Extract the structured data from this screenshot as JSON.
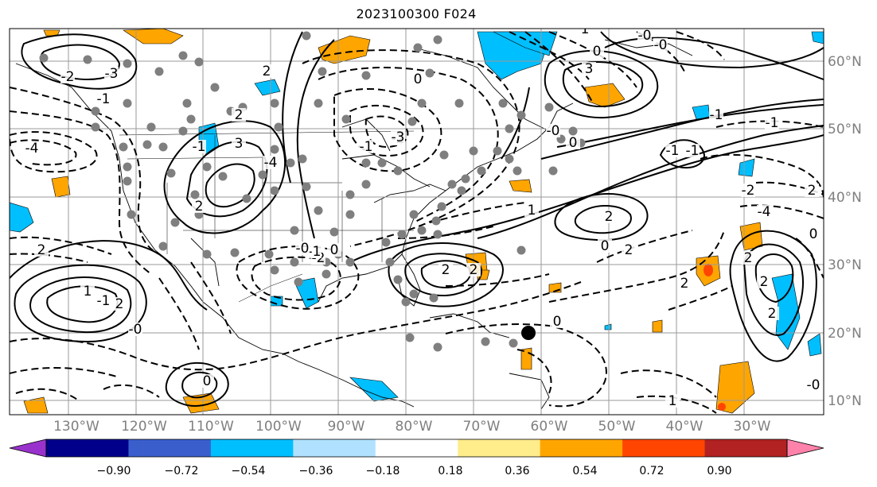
{
  "title": "2023100300 F024",
  "map": {
    "lon_labels": [
      "130°W",
      "120°W",
      "110°W",
      "100°W",
      "90°W",
      "80°W",
      "70°W",
      "60°W",
      "50°W",
      "40°W",
      "30°W"
    ],
    "lat_labels": [
      "60°N",
      "50°N",
      "40°N",
      "30°N",
      "20°N",
      "10°N"
    ],
    "contour_labels": [
      "-2",
      "-3",
      "-1",
      "-4",
      "2",
      "-1",
      "3",
      "-4",
      "2",
      "1",
      "-1",
      "2",
      "-2",
      "-1",
      "0",
      "-0",
      "0",
      "2",
      "2",
      "-1",
      "2",
      "2",
      "1",
      "-2",
      "2",
      "0",
      "-1",
      "-1",
      "-0",
      "0",
      "1",
      "2",
      "2",
      "0",
      "2",
      "1",
      "0",
      "-0",
      "-0",
      "2",
      "-1",
      "0",
      "2",
      "-0",
      "-4",
      "3",
      "-0",
      "2",
      "0",
      "-3",
      "-1",
      "-2"
    ]
  },
  "colorbar": {
    "tick_labels": [
      "−0.90",
      "−0.72",
      "−0.54",
      "−0.36",
      "−0.18",
      "0.18",
      "0.36",
      "0.54",
      "0.72",
      "0.90"
    ],
    "colors": [
      "#9932cc",
      "#00008b",
      "#3a5fcd",
      "#00bfff",
      "#b0e2ff",
      "#ffffff",
      "#ffec8b",
      "#ffa500",
      "#ff4500",
      "#b22222",
      "#ff82ab"
    ]
  }
}
